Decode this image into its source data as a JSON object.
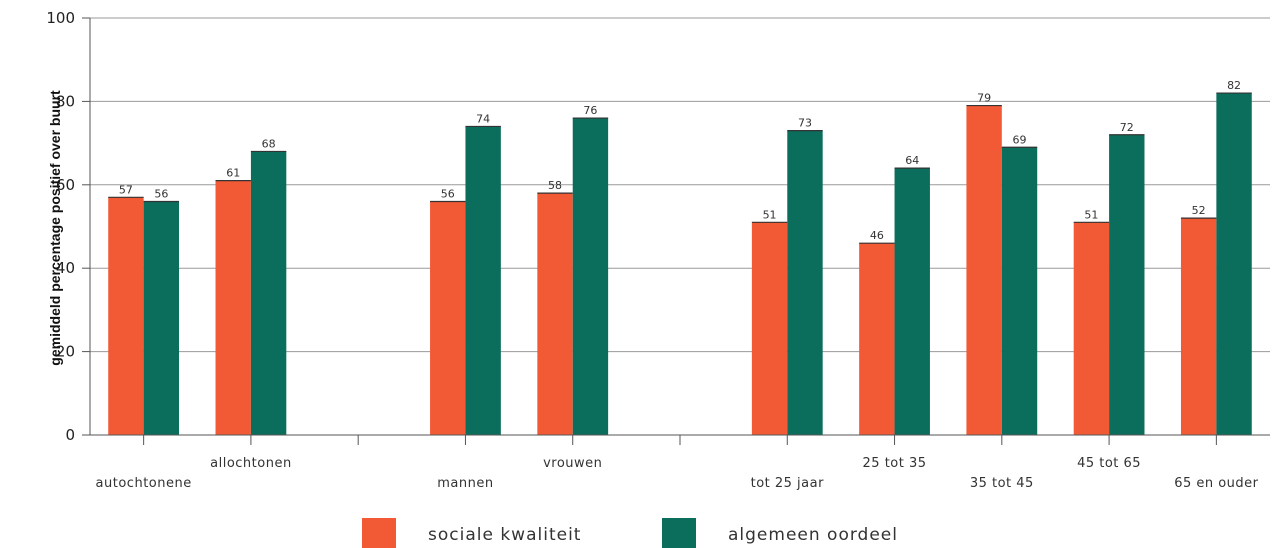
{
  "chart_data": {
    "type": "bar",
    "title": "",
    "xlabel": "",
    "ylabel": "gemiddeld percentage positief over buurt",
    "ylim": [
      0,
      100
    ],
    "yticks": [
      0,
      20,
      40,
      60,
      80,
      100
    ],
    "grid": true,
    "legend_position": "bottom",
    "categories": [
      "autochtonene",
      "allochtonen",
      "mannen",
      "vrouwen",
      "tot 25 jaar",
      "25 tot 35",
      "35 tot 45",
      "45 tot 65",
      "65 en ouder"
    ],
    "groups": [
      [
        0,
        1
      ],
      [
        2,
        3
      ],
      [
        4,
        5,
        6,
        7,
        8
      ]
    ],
    "series": [
      {
        "name": "sociale kwaliteit",
        "color": "#f25a36",
        "values": [
          57,
          61,
          56,
          58,
          51,
          46,
          79,
          51,
          52
        ]
      },
      {
        "name": "algemeen oordeel",
        "color": "#0b6e5c",
        "values": [
          56,
          68,
          74,
          76,
          73,
          64,
          69,
          72,
          82
        ]
      }
    ]
  }
}
